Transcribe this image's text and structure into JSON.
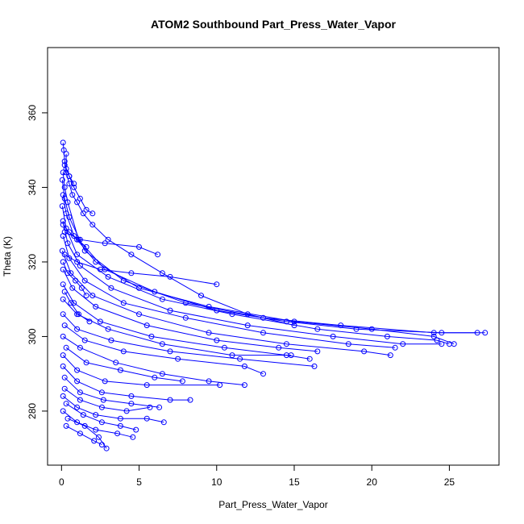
{
  "chart_data": {
    "type": "line",
    "title": "ATOM2 Southbound Part_Press_Water_Vapor",
    "xlabel": "Part_Press_Water_Vapor",
    "ylabel": "Theta (K)",
    "xlim": [
      -0.9,
      28.2
    ],
    "ylim": [
      265.5,
      377.5
    ],
    "x_ticks": [
      0,
      5,
      10,
      15,
      20,
      25
    ],
    "y_ticks": [
      280,
      300,
      320,
      340,
      360
    ],
    "y_tick_labels_rotated": true,
    "grid": false,
    "legend": "none",
    "marker": "open-circle",
    "color": "#0000ff",
    "series": [
      {
        "points": [
          [
            0.1,
            352
          ],
          [
            0.15,
            350
          ],
          [
            0.2,
            347
          ],
          [
            0.3,
            344
          ],
          [
            0.5,
            341
          ],
          [
            0.7,
            338
          ],
          [
            1.0,
            336
          ],
          [
            1.4,
            333
          ],
          [
            2.0,
            330
          ],
          [
            3.0,
            326
          ],
          [
            4.5,
            322
          ],
          [
            6.5,
            317
          ],
          [
            9.0,
            311
          ],
          [
            12.0,
            306
          ],
          [
            15.0,
            303
          ]
        ]
      },
      {
        "points": [
          [
            0.1,
            344
          ],
          [
            0.2,
            340
          ],
          [
            0.4,
            336
          ],
          [
            1.1,
            326
          ],
          [
            2.8,
            318
          ],
          [
            6.0,
            312
          ],
          [
            10.0,
            307
          ],
          [
            14.5,
            304
          ],
          [
            19.0,
            302
          ],
          [
            24.5,
            301
          ],
          [
            27.3,
            301
          ]
        ]
      },
      {
        "points": [
          [
            0.05,
            342
          ],
          [
            0.2,
            337
          ],
          [
            0.5,
            332
          ],
          [
            1.5,
            323
          ],
          [
            4.0,
            315
          ],
          [
            8.0,
            309
          ],
          [
            13.0,
            305
          ],
          [
            18.0,
            303
          ],
          [
            24.0,
            301
          ],
          [
            26.8,
            301
          ]
        ]
      },
      {
        "points": [
          [
            0.1,
            338
          ],
          [
            0.3,
            333
          ],
          [
            0.8,
            327
          ],
          [
            2.2,
            320
          ],
          [
            5.0,
            313
          ],
          [
            9.5,
            308
          ],
          [
            15.0,
            304
          ],
          [
            20.0,
            302
          ],
          [
            24.0,
            300
          ],
          [
            25.3,
            298
          ]
        ]
      },
      {
        "points": [
          [
            0.05,
            335
          ],
          [
            0.3,
            329
          ],
          [
            1.0,
            322
          ],
          [
            3.0,
            316
          ],
          [
            6.5,
            310
          ],
          [
            11.0,
            306
          ],
          [
            16.5,
            302
          ],
          [
            21.0,
            300
          ],
          [
            24.2,
            299
          ],
          [
            25.0,
            298
          ]
        ]
      },
      {
        "points": [
          [
            0.1,
            331
          ],
          [
            0.4,
            325
          ],
          [
            1.2,
            319
          ],
          [
            3.2,
            313
          ],
          [
            7.0,
            307
          ],
          [
            12.0,
            303
          ],
          [
            17.5,
            300
          ],
          [
            22.0,
            298
          ],
          [
            24.5,
            298
          ]
        ]
      },
      {
        "points": [
          [
            0.1,
            327
          ],
          [
            0.5,
            321
          ],
          [
            1.5,
            315
          ],
          [
            4.0,
            309
          ],
          [
            8.0,
            305
          ],
          [
            13.0,
            301
          ],
          [
            18.5,
            298
          ],
          [
            21.5,
            297
          ]
        ]
      },
      {
        "points": [
          [
            0.05,
            323
          ],
          [
            0.6,
            317
          ],
          [
            2.0,
            311
          ],
          [
            5.0,
            306
          ],
          [
            9.5,
            301
          ],
          [
            14.5,
            298
          ],
          [
            19.5,
            296
          ],
          [
            21.2,
            295
          ]
        ]
      },
      {
        "points": [
          [
            0.1,
            318
          ],
          [
            0.7,
            313
          ],
          [
            2.2,
            308
          ],
          [
            5.5,
            303
          ],
          [
            10.0,
            299
          ],
          [
            14.0,
            297
          ],
          [
            16.5,
            296
          ]
        ]
      },
      {
        "points": [
          [
            0.1,
            314
          ],
          [
            0.8,
            309
          ],
          [
            2.5,
            304
          ],
          [
            5.8,
            300
          ],
          [
            10.5,
            297
          ],
          [
            14.5,
            295
          ],
          [
            16.0,
            294
          ]
        ]
      },
      {
        "points": [
          [
            0.2,
            322
          ],
          [
            1.0,
            320
          ],
          [
            2.5,
            318
          ],
          [
            4.5,
            317
          ],
          [
            7.0,
            316
          ],
          [
            10.0,
            314
          ]
        ]
      },
      {
        "points": [
          [
            0.2,
            328
          ],
          [
            1.2,
            326
          ],
          [
            2.8,
            325
          ],
          [
            5.0,
            324
          ],
          [
            6.2,
            322
          ]
        ]
      },
      {
        "points": [
          [
            0.1,
            310
          ],
          [
            1.0,
            306
          ],
          [
            3.0,
            302
          ],
          [
            6.5,
            298
          ],
          [
            11.0,
            295
          ],
          [
            14.8,
            295
          ]
        ]
      },
      {
        "points": [
          [
            0.1,
            306
          ],
          [
            1.0,
            302
          ],
          [
            3.2,
            299
          ],
          [
            7.0,
            296
          ],
          [
            11.5,
            294
          ],
          [
            16.3,
            292
          ]
        ]
      },
      {
        "points": [
          [
            0.2,
            303
          ],
          [
            1.5,
            299
          ],
          [
            4.0,
            296
          ],
          [
            7.5,
            294
          ],
          [
            11.8,
            292
          ],
          [
            13.0,
            290
          ]
        ]
      },
      {
        "points": [
          [
            0.1,
            300
          ],
          [
            1.2,
            297
          ],
          [
            3.5,
            293
          ],
          [
            6.5,
            290
          ],
          [
            9.5,
            288
          ],
          [
            11.8,
            287
          ]
        ]
      },
      {
        "points": [
          [
            0.3,
            297
          ],
          [
            1.6,
            293
          ],
          [
            3.8,
            291
          ],
          [
            6.0,
            289
          ],
          [
            7.8,
            288
          ]
        ]
      },
      {
        "points": [
          [
            0.1,
            295
          ],
          [
            1.0,
            291
          ],
          [
            2.8,
            288
          ],
          [
            5.5,
            287
          ],
          [
            10.2,
            287
          ]
        ]
      },
      {
        "points": [
          [
            0.1,
            292
          ],
          [
            1.0,
            288
          ],
          [
            2.6,
            285
          ],
          [
            4.5,
            284
          ],
          [
            7.0,
            283
          ],
          [
            8.3,
            283
          ]
        ]
      },
      {
        "points": [
          [
            0.2,
            289
          ],
          [
            1.2,
            285
          ],
          [
            2.7,
            283
          ],
          [
            4.5,
            282
          ],
          [
            6.3,
            281
          ]
        ]
      },
      {
        "points": [
          [
            0.2,
            286
          ],
          [
            1.2,
            283
          ],
          [
            2.6,
            281
          ],
          [
            4.2,
            280
          ],
          [
            5.7,
            281
          ]
        ]
      },
      {
        "points": [
          [
            0.1,
            284
          ],
          [
            1.0,
            281
          ],
          [
            2.2,
            279
          ],
          [
            3.8,
            278
          ],
          [
            5.5,
            278
          ],
          [
            6.6,
            277
          ]
        ]
      },
      {
        "points": [
          [
            0.3,
            282
          ],
          [
            1.4,
            279
          ],
          [
            2.6,
            277
          ],
          [
            3.8,
            276
          ],
          [
            4.8,
            275
          ]
        ]
      },
      {
        "points": [
          [
            0.1,
            280
          ],
          [
            1.0,
            277
          ],
          [
            2.2,
            275
          ],
          [
            3.6,
            274
          ],
          [
            4.6,
            273
          ]
        ]
      },
      {
        "points": [
          [
            0.4,
            278
          ],
          [
            1.5,
            276
          ],
          [
            2.4,
            273
          ],
          [
            2.9,
            270
          ]
        ]
      },
      {
        "points": [
          [
            0.3,
            276
          ],
          [
            1.2,
            274
          ],
          [
            2.1,
            272
          ],
          [
            2.6,
            271
          ]
        ]
      },
      {
        "points": [
          [
            0.2,
            346
          ],
          [
            0.5,
            343
          ],
          [
            0.8,
            340
          ],
          [
            1.2,
            337
          ],
          [
            1.6,
            334
          ],
          [
            2.0,
            333
          ]
        ]
      },
      {
        "points": [
          [
            0.3,
            349
          ],
          [
            0.3,
            345
          ],
          [
            0.5,
            343
          ],
          [
            0.8,
            341
          ]
        ]
      },
      {
        "points": [
          [
            0.1,
            320
          ],
          [
            0.4,
            317
          ],
          [
            0.9,
            315
          ],
          [
            1.3,
            313
          ],
          [
            1.6,
            311
          ]
        ]
      },
      {
        "points": [
          [
            0.2,
            312
          ],
          [
            0.6,
            309
          ],
          [
            1.1,
            306
          ],
          [
            1.8,
            304
          ]
        ]
      },
      {
        "points": [
          [
            0.1,
            330
          ],
          [
            0.5,
            328
          ],
          [
            1.0,
            326
          ],
          [
            1.6,
            324
          ]
        ]
      }
    ]
  }
}
